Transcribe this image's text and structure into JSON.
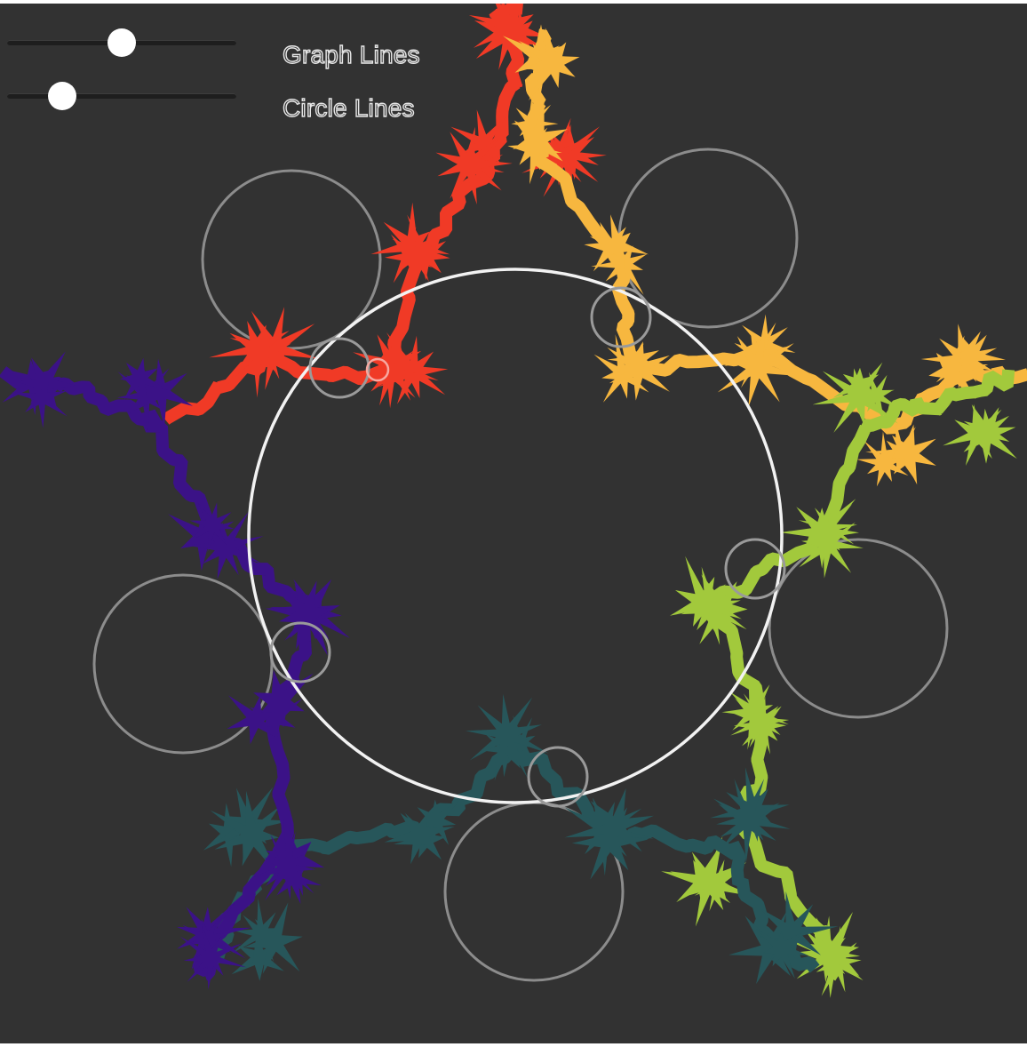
{
  "controls": {
    "graph_lines": {
      "label": "Graph Lines",
      "value": 0.5
    },
    "circle_lines": {
      "label": "Circle Lines",
      "value": 0.24
    }
  },
  "colors": {
    "background": "#323232",
    "arms": [
      "#f03a26",
      "#f7b73f",
      "#a2c93c",
      "#27565a",
      "#3b1287"
    ],
    "main_circle": "#f2f2f2",
    "guide_circle": "#8c8c8c"
  }
}
